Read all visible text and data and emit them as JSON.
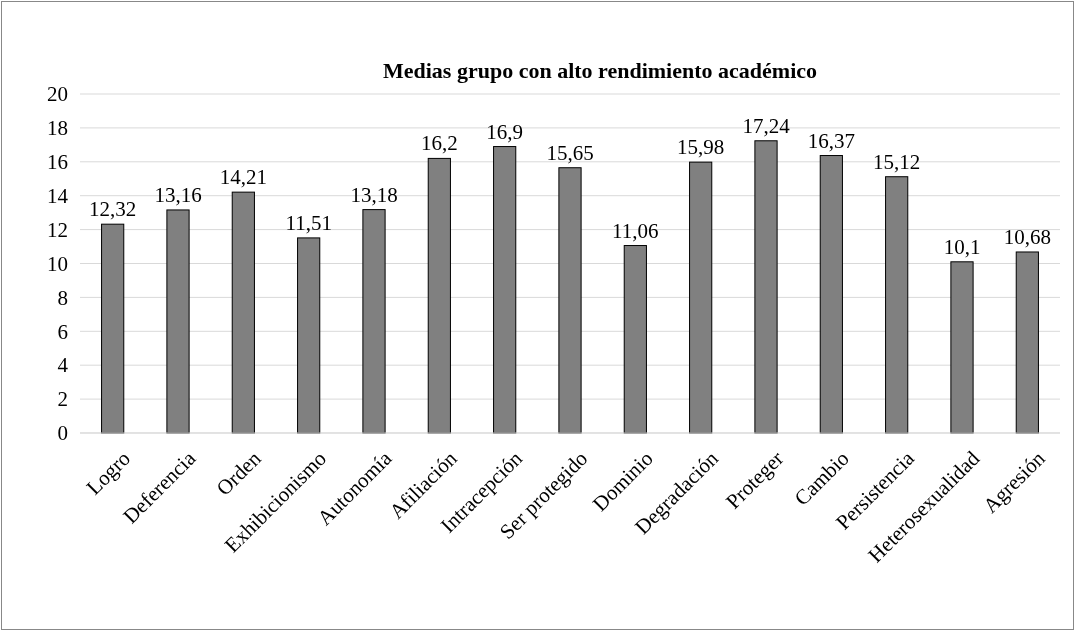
{
  "chart_data": {
    "type": "bar",
    "title": "Medias grupo con alto rendimiento académico",
    "categories": [
      "Logro",
      "Deferencia",
      "Orden",
      "Exhibicionismo",
      "Autonomía",
      "Afiliación",
      "Intracepción",
      "Ser protegido",
      "Dominio",
      "Degradación",
      "Proteger",
      "Cambio",
      "Persistencia",
      "Heterosexualidad",
      "Agresión"
    ],
    "values": [
      12.32,
      13.16,
      14.21,
      11.51,
      13.18,
      16.2,
      16.9,
      15.65,
      11.06,
      15.98,
      17.24,
      16.37,
      15.12,
      10.1,
      10.68
    ],
    "value_labels": [
      "12,32",
      "13,16",
      "14,21",
      "11,51",
      "13,18",
      "16,2",
      "16,9",
      "15,65",
      "11,06",
      "15,98",
      "17,24",
      "16,37",
      "15,12",
      "10,1",
      "10,68"
    ],
    "color": "#808080",
    "ylim": [
      0,
      20
    ],
    "yticks": [
      0,
      2,
      4,
      6,
      8,
      10,
      12,
      14,
      16,
      18,
      20
    ],
    "grid": "y"
  }
}
